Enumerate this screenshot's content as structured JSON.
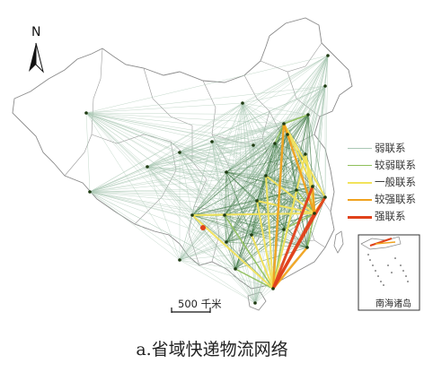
{
  "figure": {
    "caption": "a.省域快递物流网络",
    "north_arrow_label": "N",
    "scale_bar_label": "500 千米",
    "inset_label": "南海诸岛"
  },
  "legend": {
    "items": [
      {
        "label": "弱联系",
        "color": "#a9c7b4",
        "width": 1
      },
      {
        "label": "较弱联系",
        "color": "#8fc05a",
        "width": 1.5
      },
      {
        "label": "一般联系",
        "color": "#f2e35a",
        "width": 2
      },
      {
        "label": "较强联系",
        "color": "#f0a21e",
        "width": 2.5
      },
      {
        "label": "强联系",
        "color": "#e0421b",
        "width": 3
      }
    ]
  },
  "colors": {
    "boundary": "#777777",
    "node": "#1e3b12",
    "weak": "#a9c7b4",
    "dense_weak": "#3f7a45"
  },
  "nodes": [
    {
      "id": "heilongjiang"
    },
    {
      "id": "jilin"
    },
    {
      "id": "liaoning"
    },
    {
      "id": "beijing"
    },
    {
      "id": "tianjin"
    },
    {
      "id": "hebei"
    },
    {
      "id": "shanxi"
    },
    {
      "id": "neimenggu"
    },
    {
      "id": "shandong"
    },
    {
      "id": "henan"
    },
    {
      "id": "jiangsu"
    },
    {
      "id": "shanghai"
    },
    {
      "id": "zhejiang"
    },
    {
      "id": "anhui"
    },
    {
      "id": "hubei"
    },
    {
      "id": "shaanxi"
    },
    {
      "id": "ningxia"
    },
    {
      "id": "gansu"
    },
    {
      "id": "qinghai"
    },
    {
      "id": "xinjiang"
    },
    {
      "id": "xizang"
    },
    {
      "id": "sichuan"
    },
    {
      "id": "chongqing"
    },
    {
      "id": "guizhou"
    },
    {
      "id": "yunnan"
    },
    {
      "id": "guangxi"
    },
    {
      "id": "guangdong"
    },
    {
      "id": "hainan"
    },
    {
      "id": "hunan"
    },
    {
      "id": "jiangxi"
    },
    {
      "id": "fujian"
    }
  ]
}
